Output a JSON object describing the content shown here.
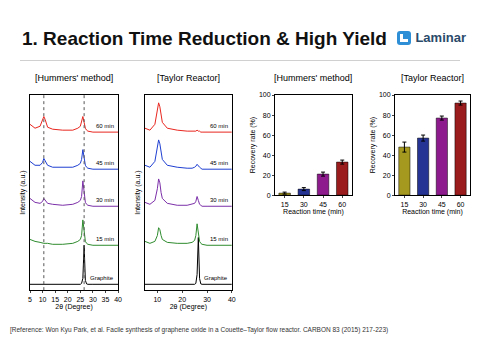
{
  "header": {
    "title": "1. Reaction Time Reduction & High Yield",
    "logo": "Laminar"
  },
  "footer": {
    "reference": "[Reference: Won Kyu Park, et al. Facile synthesis of graphene oxide in a Couette–Taylor flow reactor. CARBON 83 (2015) 217-223)"
  },
  "chart_data": [
    {
      "type": "line",
      "title": "[Hummers' method]",
      "x_label": "2θ (Degree)",
      "y_label": "Intensity (a.u.)",
      "x": [
        5,
        7,
        9,
        10,
        10.5,
        11,
        11.5,
        12,
        14,
        18,
        22,
        24,
        25,
        25.5,
        26,
        26.5,
        27,
        27.5,
        28,
        30,
        35,
        40
      ],
      "series": [
        {
          "name": "Graphite",
          "color": "#000000",
          "values": [
            0.3,
            0.3,
            0.3,
            0.3,
            0.3,
            0.3,
            0.3,
            0.3,
            0.3,
            0.3,
            0.3,
            0.3,
            0.3,
            0.35,
            0.6,
            2.3,
            0.5,
            0.32,
            0.3,
            0.3,
            0.3,
            0.3
          ]
        },
        {
          "name": "15 min",
          "color": "#2e8b2e",
          "values": [
            2.6,
            2.5,
            2.45,
            2.4,
            2.4,
            2.4,
            2.4,
            2.4,
            2.35,
            2.35,
            2.4,
            2.5,
            2.6,
            2.8,
            3.6,
            3.0,
            2.5,
            2.4,
            2.35,
            2.3,
            2.3,
            2.3
          ]
        },
        {
          "name": "30 min",
          "color": "#7b2fa8",
          "values": [
            4.7,
            4.5,
            4.45,
            4.55,
            4.7,
            4.6,
            4.5,
            4.45,
            4.4,
            4.35,
            4.4,
            4.5,
            4.6,
            4.8,
            5.6,
            5.0,
            4.5,
            4.4,
            4.35,
            4.3,
            4.3,
            4.3
          ]
        },
        {
          "name": "45 min",
          "color": "#1f3fd1",
          "values": [
            6.6,
            6.4,
            6.4,
            6.55,
            6.75,
            6.65,
            6.5,
            6.4,
            6.3,
            6.3,
            6.3,
            6.4,
            6.5,
            6.7,
            7.2,
            6.8,
            6.4,
            6.3,
            6.25,
            6.2,
            6.2,
            6.2
          ]
        },
        {
          "name": "60 min",
          "color": "#e8261f",
          "values": [
            8.5,
            8.3,
            8.4,
            8.7,
            8.9,
            8.75,
            8.5,
            8.35,
            8.25,
            8.2,
            8.2,
            8.3,
            8.4,
            8.6,
            8.9,
            8.6,
            8.3,
            8.2,
            8.15,
            8.1,
            8.1,
            8.1
          ]
        }
      ],
      "xlim": [
        5,
        40
      ],
      "xticks": [
        5,
        10,
        15,
        20,
        25,
        30,
        35,
        40
      ],
      "ylim": [
        0,
        10
      ],
      "tick_labels": "x",
      "grid": false,
      "reference_lines": [
        10.5,
        26.5
      ]
    },
    {
      "type": "line",
      "title": "[Taylor Reactor]",
      "x_label": "2θ (Degree)",
      "y_label": "Intensity (a.u.)",
      "x": [
        5,
        7,
        9,
        10,
        10.5,
        11,
        11.5,
        12,
        14,
        18,
        22,
        24,
        25,
        25.5,
        26,
        26.5,
        27,
        27.5,
        28,
        30,
        35,
        40
      ],
      "series": [
        {
          "name": "Graphite",
          "color": "#000000",
          "values": [
            0.3,
            0.3,
            0.3,
            0.3,
            0.3,
            0.3,
            0.3,
            0.3,
            0.3,
            0.3,
            0.3,
            0.3,
            0.3,
            0.35,
            0.8,
            2.7,
            0.6,
            0.32,
            0.3,
            0.3,
            0.3,
            0.3
          ]
        },
        {
          "name": "15 min",
          "color": "#2e8b2e",
          "values": [
            2.5,
            2.4,
            2.5,
            2.8,
            3.2,
            3.1,
            2.8,
            2.6,
            2.45,
            2.4,
            2.4,
            2.45,
            2.55,
            2.8,
            3.4,
            2.9,
            2.5,
            2.4,
            2.35,
            2.3,
            2.3,
            2.3
          ]
        },
        {
          "name": "30 min",
          "color": "#7b2fa8",
          "values": [
            4.5,
            4.4,
            4.6,
            5.2,
            5.7,
            5.5,
            5.0,
            4.7,
            4.45,
            4.35,
            4.35,
            4.4,
            4.45,
            4.55,
            4.8,
            4.6,
            4.4,
            4.35,
            4.3,
            4.3,
            4.3,
            4.3
          ]
        },
        {
          "name": "45 min",
          "color": "#1f3fd1",
          "values": [
            6.4,
            6.3,
            6.6,
            7.3,
            7.7,
            7.5,
            7.0,
            6.7,
            6.4,
            6.3,
            6.25,
            6.25,
            6.3,
            6.35,
            6.45,
            6.35,
            6.3,
            6.25,
            6.2,
            6.2,
            6.2,
            6.2
          ]
        },
        {
          "name": "60 min",
          "color": "#e8261f",
          "values": [
            8.3,
            8.2,
            8.5,
            9.2,
            9.6,
            9.4,
            8.9,
            8.6,
            8.3,
            8.2,
            8.15,
            8.15,
            8.15,
            8.15,
            8.2,
            8.15,
            8.15,
            8.1,
            8.1,
            8.1,
            8.1,
            8.1
          ]
        }
      ],
      "xlim": [
        5,
        40
      ],
      "xticks": [
        10,
        20,
        30,
        40
      ],
      "ylim": [
        0,
        10
      ],
      "tick_labels": "x",
      "grid": false
    },
    {
      "type": "bar",
      "title": "[Hummers' method]",
      "x_label": "Reaction time (min)",
      "y_label": "Recovery rate (%)",
      "categories": [
        "15",
        "30",
        "45",
        "60"
      ],
      "values": [
        2,
        6,
        21,
        33
      ],
      "errors": [
        1,
        1.5,
        2,
        2
      ],
      "colors": [
        "#a59a1f",
        "#253494",
        "#8e1b8e",
        "#9b1c1c"
      ],
      "ylim": [
        0,
        100
      ],
      "yticks": [
        0,
        20,
        40,
        60,
        80,
        100
      ],
      "grid": false
    },
    {
      "type": "bar",
      "title": "[Taylor Reactor]",
      "x_label": "Reaction time (min)",
      "y_label": "Recovery rate (%)",
      "categories": [
        "15",
        "30",
        "45",
        "60"
      ],
      "values": [
        48,
        57,
        77,
        92
      ],
      "errors": [
        5,
        3,
        2,
        2
      ],
      "colors": [
        "#a59a1f",
        "#253494",
        "#8e1b8e",
        "#9b1c1c"
      ],
      "ylim": [
        0,
        100
      ],
      "yticks": [
        0,
        20,
        40,
        60,
        80,
        100
      ],
      "grid": false
    }
  ]
}
